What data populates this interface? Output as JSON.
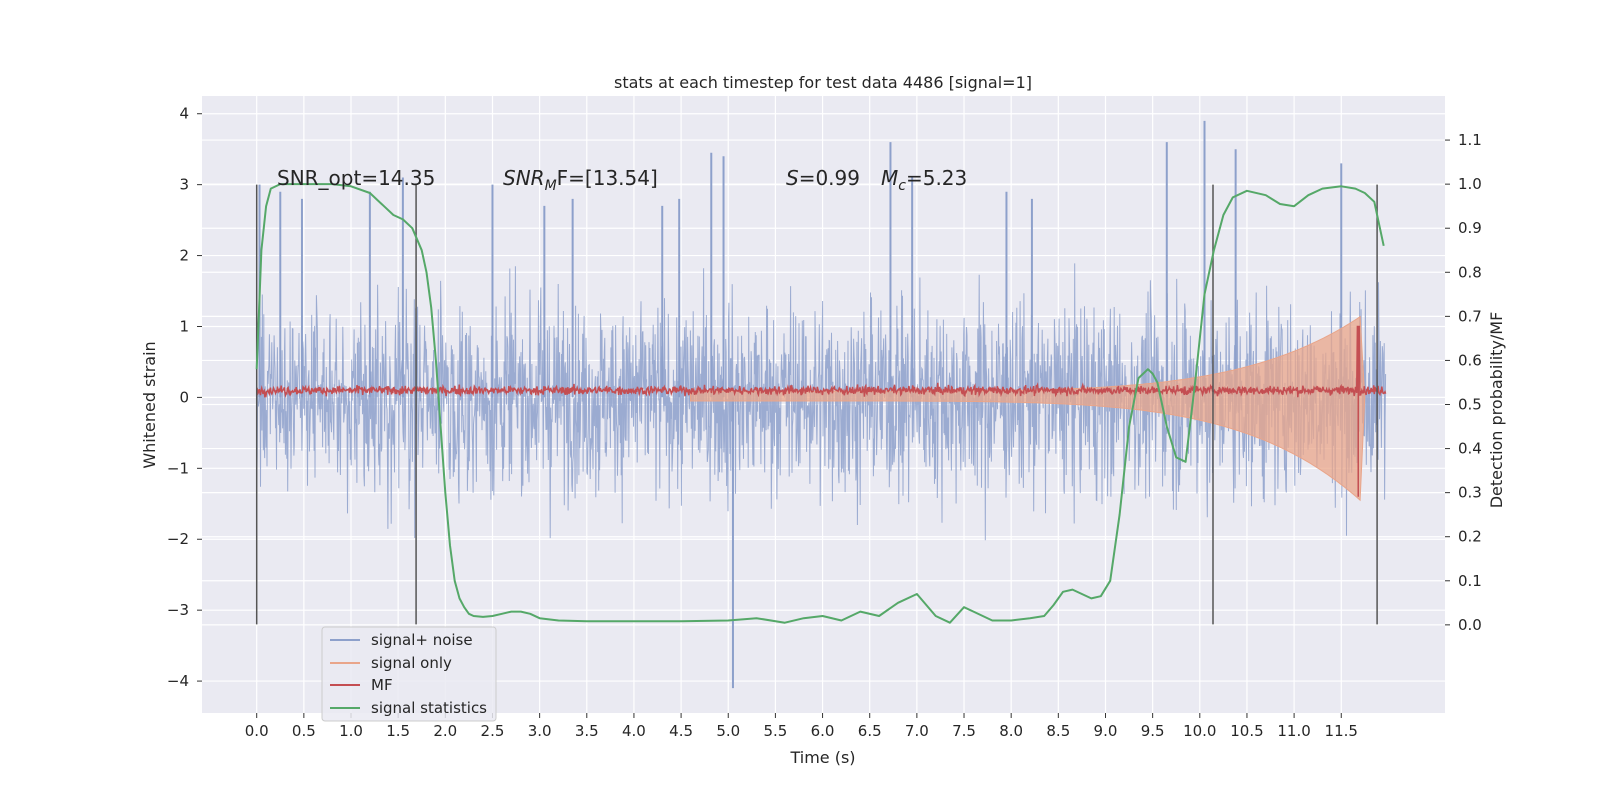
{
  "chart_data": {
    "type": "line",
    "title": "stats at each timestep for test data 4486 [signal=1]",
    "xlabel": "Time (s)",
    "ylabel_left": "Whitened strain",
    "ylabel_right": "Detection probability/MF",
    "xlim": [
      -0.58,
      12.6
    ],
    "ylim_left": [
      -4.45,
      4.25
    ],
    "ylim_right": [
      -0.2,
      1.2
    ],
    "x_ticks": [
      "0.0",
      "0.5",
      "1.0",
      "1.5",
      "2.0",
      "2.5",
      "3.0",
      "3.5",
      "4.0",
      "4.5",
      "5.0",
      "5.5",
      "6.0",
      "6.5",
      "7.0",
      "7.5",
      "8.0",
      "8.5",
      "9.0",
      "9.5",
      "10.0",
      "10.5",
      "11.0",
      "11.5"
    ],
    "y_ticks_left": [
      -4,
      -3,
      -2,
      -1,
      0,
      1,
      2,
      3,
      4
    ],
    "y_ticks_right": [
      0.0,
      0.1,
      0.2,
      0.3,
      0.4,
      0.5,
      0.6,
      0.7,
      0.8,
      0.9,
      1.0,
      1.1
    ],
    "grid": true,
    "legend_position": "bottom-left",
    "annotations": {
      "snr_opt": "SNR_opt=14.35",
      "snr_mf_label": "SNR",
      "snr_mf_sub": "M",
      "snr_mf_value": "F=[13.54]",
      "s_label": "S",
      "s_value": "=0.99",
      "mc_label": "M",
      "mc_sub": "c",
      "mc_value": "=5.23"
    },
    "vertical_markers": [
      {
        "x": 0.0,
        "y": [
          -3.2,
          3.0
        ]
      },
      {
        "x": 1.69,
        "y": [
          -3.2,
          3.0
        ]
      },
      {
        "x": 10.14,
        "y": [
          -3.2,
          3.0
        ]
      },
      {
        "x": 11.88,
        "y": [
          -3.2,
          3.0
        ]
      }
    ],
    "series": [
      {
        "name": "signal+ noise",
        "color": "#8da0cb",
        "x_range": [
          0,
          11.97
        ],
        "description_points": "noise envelope approx +/-2.3, peaks to +/-3.6",
        "spike_x": [
          0.03,
          0.25,
          0.48,
          1.2,
          1.55,
          2.5,
          3.05,
          3.35,
          4.3,
          4.48,
          4.82,
          4.95,
          5.05,
          6.72,
          6.95,
          7.95,
          8.22,
          9.65,
          10.05,
          10.38,
          11.5
        ],
        "spike_y": [
          3.0,
          2.9,
          2.8,
          2.9,
          3.1,
          3.0,
          2.7,
          2.8,
          2.7,
          2.8,
          3.45,
          3.4,
          -4.1,
          3.6,
          3.1,
          2.9,
          2.8,
          3.6,
          3.9,
          3.5,
          3.3
        ]
      },
      {
        "name": "signal only",
        "color": "#e9a58a",
        "chirp_start": 4.6,
        "chirp_peak": 11.7,
        "peak_amplitude": 1.4
      },
      {
        "name": "MF",
        "color": "#c44e52",
        "baseline": 0.1,
        "noise_amplitude": 0.08,
        "peak": {
          "x": 11.68,
          "y": 1.0
        }
      },
      {
        "name": "signal statistics",
        "color": "#55a868",
        "axis": "right",
        "x": [
          0.0,
          0.05,
          0.1,
          0.15,
          0.25,
          0.5,
          0.8,
          1.0,
          1.2,
          1.35,
          1.45,
          1.55,
          1.65,
          1.75,
          1.8,
          1.85,
          1.9,
          1.95,
          2.0,
          2.05,
          2.1,
          2.15,
          2.2,
          2.25,
          2.3,
          2.4,
          2.5,
          2.6,
          2.7,
          2.8,
          2.9,
          3.0,
          3.2,
          3.5,
          4.0,
          4.5,
          5.0,
          5.3,
          5.6,
          5.8,
          6.0,
          6.2,
          6.4,
          6.6,
          6.8,
          7.0,
          7.2,
          7.35,
          7.5,
          7.6,
          7.8,
          8.0,
          8.2,
          8.35,
          8.45,
          8.55,
          8.65,
          8.75,
          8.85,
          8.95,
          9.05,
          9.15,
          9.25,
          9.35,
          9.45,
          9.5,
          9.55,
          9.65,
          9.75,
          9.85,
          9.95,
          10.05,
          10.15,
          10.25,
          10.35,
          10.5,
          10.7,
          10.85,
          11.0,
          11.15,
          11.3,
          11.5,
          11.65,
          11.75,
          11.85,
          11.95
        ],
        "y": [
          0.58,
          0.85,
          0.95,
          0.99,
          1.0,
          1.0,
          1.0,
          0.995,
          0.98,
          0.95,
          0.93,
          0.92,
          0.9,
          0.85,
          0.8,
          0.72,
          0.6,
          0.45,
          0.3,
          0.18,
          0.1,
          0.06,
          0.04,
          0.025,
          0.02,
          0.018,
          0.02,
          0.025,
          0.03,
          0.03,
          0.025,
          0.015,
          0.01,
          0.008,
          0.008,
          0.008,
          0.01,
          0.015,
          0.005,
          0.015,
          0.02,
          0.01,
          0.03,
          0.02,
          0.05,
          0.07,
          0.02,
          0.005,
          0.04,
          0.03,
          0.01,
          0.01,
          0.015,
          0.02,
          0.045,
          0.075,
          0.08,
          0.07,
          0.06,
          0.065,
          0.1,
          0.25,
          0.45,
          0.56,
          0.58,
          0.57,
          0.55,
          0.45,
          0.38,
          0.37,
          0.55,
          0.75,
          0.85,
          0.93,
          0.97,
          0.985,
          0.975,
          0.955,
          0.95,
          0.975,
          0.99,
          0.995,
          0.99,
          0.98,
          0.96,
          0.86
        ]
      }
    ],
    "legend": [
      "signal+ noise",
      "signal only",
      "MF",
      "signal statistics"
    ]
  }
}
